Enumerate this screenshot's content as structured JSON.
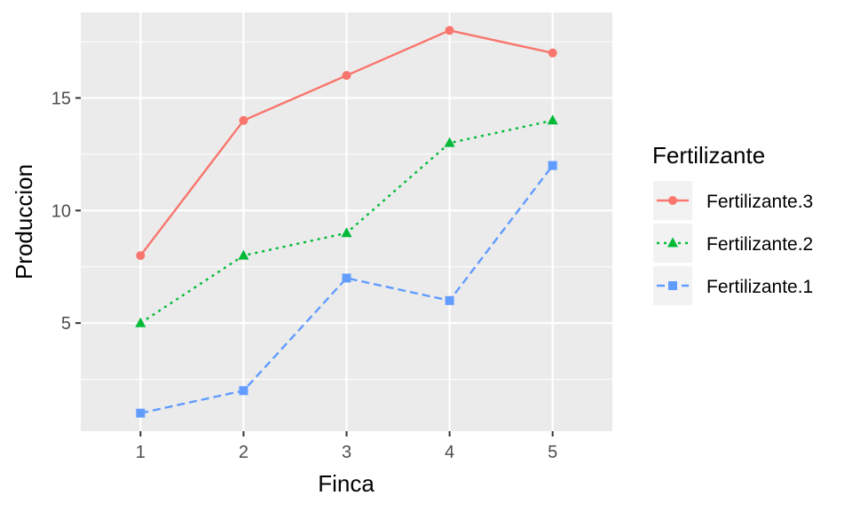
{
  "chart_data": {
    "type": "line",
    "xlabel": "Finca",
    "ylabel": "Produccion",
    "x": [
      1,
      2,
      3,
      4,
      5
    ],
    "xlim": [
      0.42,
      5.58
    ],
    "ylim": [
      0.2,
      18.8
    ],
    "y_ticks": [
      5,
      10,
      15
    ],
    "grid": true,
    "legend": {
      "title": "Fertilizante",
      "placement": "right"
    },
    "series": [
      {
        "name": "Fertilizante.3",
        "values": [
          8,
          14,
          16,
          18,
          17
        ],
        "color": "#F8766D",
        "marker": "circle",
        "dash": "solid"
      },
      {
        "name": "Fertilizante.2",
        "values": [
          5,
          8,
          9,
          13,
          14
        ],
        "color": "#00BA38",
        "marker": "triangle",
        "dash": "dotted"
      },
      {
        "name": "Fertilizante.1",
        "values": [
          1,
          2,
          7,
          6,
          12
        ],
        "color": "#619CFF",
        "marker": "square",
        "dash": "dashed"
      }
    ]
  }
}
